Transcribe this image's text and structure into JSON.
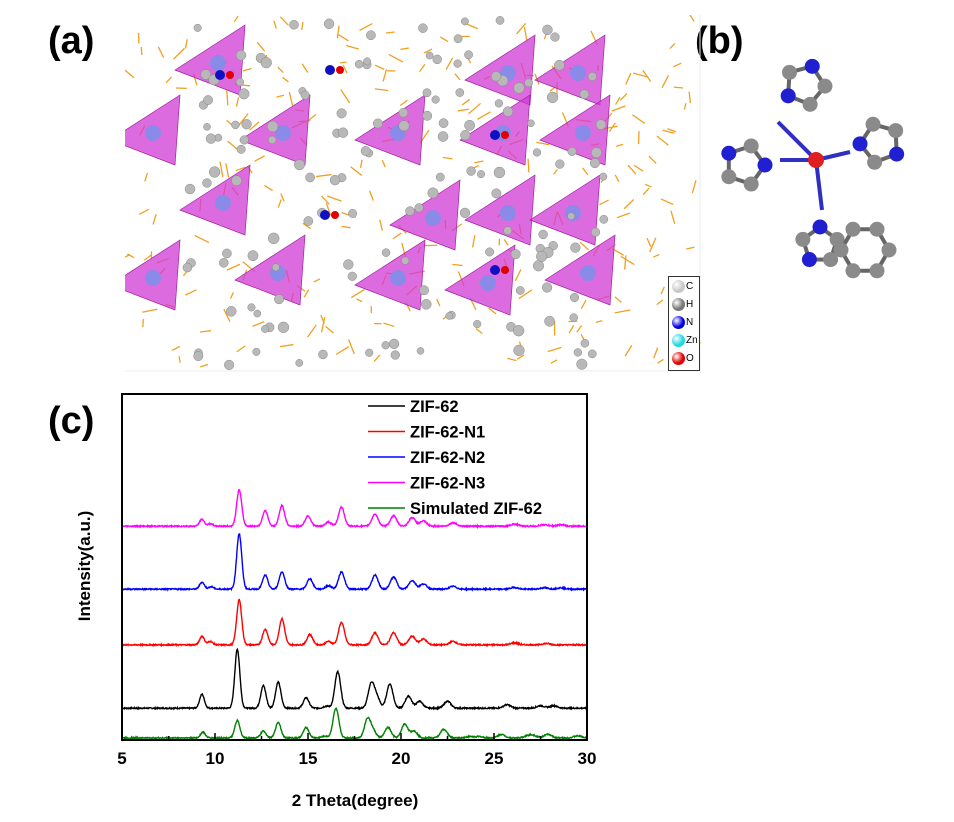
{
  "panels": {
    "a": "(a)",
    "b": "(b)",
    "c": "(c)"
  },
  "atom_legend": [
    {
      "symbol": "C",
      "color": "#c8c8c8"
    },
    {
      "symbol": "H",
      "color": "#777777"
    },
    {
      "symbol": "N",
      "color": "#0000e0"
    },
    {
      "symbol": "Zn",
      "color": "#22d8e0"
    },
    {
      "symbol": "O",
      "color": "#e00000"
    }
  ],
  "chart_data": {
    "type": "line",
    "xlabel": "2 Theta(degree)",
    "ylabel": "Intensity(a.u.)",
    "xlim": [
      5,
      30
    ],
    "ylim": [
      0,
      100
    ],
    "xticks": [
      5,
      10,
      15,
      20,
      25,
      30
    ],
    "legend_position": "top-right",
    "series": [
      {
        "name": "ZIF-62",
        "color": "#000000",
        "baseline": 9.2,
        "peaks": [
          [
            9.3,
            4
          ],
          [
            11.2,
            17
          ],
          [
            12.6,
            6.5
          ],
          [
            13.4,
            7.5
          ],
          [
            14.9,
            3
          ],
          [
            16.0,
            0.6
          ],
          [
            16.6,
            10.5
          ],
          [
            18.4,
            7
          ],
          [
            18.7,
            3
          ],
          [
            19.4,
            7
          ],
          [
            20.4,
            3.5
          ],
          [
            21.0,
            2
          ],
          [
            22.5,
            2
          ],
          [
            25.7,
            1
          ],
          [
            27.5,
            0.7
          ],
          [
            28.2,
            0.7
          ]
        ]
      },
      {
        "name": "ZIF-62-N1",
        "color": "#ff0000",
        "baseline": 27.5,
        "peaks": [
          [
            9.3,
            2.5
          ],
          [
            9.75,
            1
          ],
          [
            11.3,
            13
          ],
          [
            12.7,
            4.5
          ],
          [
            13.6,
            7.5
          ],
          [
            15.1,
            3
          ],
          [
            16.1,
            1
          ],
          [
            16.8,
            6.5
          ],
          [
            18.6,
            3.5
          ],
          [
            19.6,
            3.5
          ],
          [
            20.6,
            2.5
          ],
          [
            21.2,
            1.7
          ],
          [
            22.8,
            1
          ],
          [
            26.1,
            0.6
          ],
          [
            27.8,
            0.4
          ]
        ]
      },
      {
        "name": "ZIF-62-N2",
        "color": "#0000ff",
        "baseline": 43.6,
        "peaks": [
          [
            9.3,
            2
          ],
          [
            9.8,
            0.7
          ],
          [
            11.3,
            16
          ],
          [
            12.7,
            4
          ],
          [
            13.6,
            5
          ],
          [
            15.1,
            3
          ],
          [
            16.1,
            1
          ],
          [
            16.8,
            5
          ],
          [
            18.6,
            4
          ],
          [
            19.6,
            3.5
          ],
          [
            20.6,
            2.5
          ],
          [
            21.2,
            1.5
          ],
          [
            22.8,
            0.8
          ],
          [
            26.1,
            0.5
          ],
          [
            27.7,
            0.4
          ],
          [
            28.6,
            0.4
          ]
        ]
      },
      {
        "name": "ZIF-62-N3",
        "color": "#ff00ff",
        "baseline": 61.8,
        "peaks": [
          [
            9.3,
            2
          ],
          [
            9.75,
            0.7
          ],
          [
            11.3,
            10.5
          ],
          [
            12.7,
            4.5
          ],
          [
            13.6,
            6
          ],
          [
            15.0,
            3
          ],
          [
            16.1,
            1.2
          ],
          [
            16.8,
            5.5
          ],
          [
            18.6,
            3.5
          ],
          [
            19.6,
            3
          ],
          [
            20.6,
            2.5
          ],
          [
            21.2,
            1.5
          ],
          [
            22.8,
            1
          ],
          [
            26.1,
            0.6
          ],
          [
            27.7,
            0.4
          ],
          [
            28.6,
            0.4
          ]
        ]
      },
      {
        "name": "Simulated ZIF-62",
        "color": "#008000",
        "baseline": 0.6,
        "peaks": [
          [
            9.35,
            1.7
          ],
          [
            11.2,
            5
          ],
          [
            12.6,
            2
          ],
          [
            13.4,
            4.5
          ],
          [
            14.9,
            3
          ],
          [
            15.9,
            0.5
          ],
          [
            16.5,
            8.5
          ],
          [
            18.2,
            5.5
          ],
          [
            18.5,
            2
          ],
          [
            19.3,
            3
          ],
          [
            20.2,
            4
          ],
          [
            20.7,
            2
          ],
          [
            22.3,
            2.5
          ],
          [
            23.7,
            0.4
          ],
          [
            24.2,
            0.4
          ],
          [
            25.4,
            1
          ],
          [
            26.8,
            0.5
          ],
          [
            27.1,
            0.7
          ],
          [
            27.9,
            1
          ],
          [
            29.5,
            0.6
          ]
        ]
      }
    ]
  }
}
